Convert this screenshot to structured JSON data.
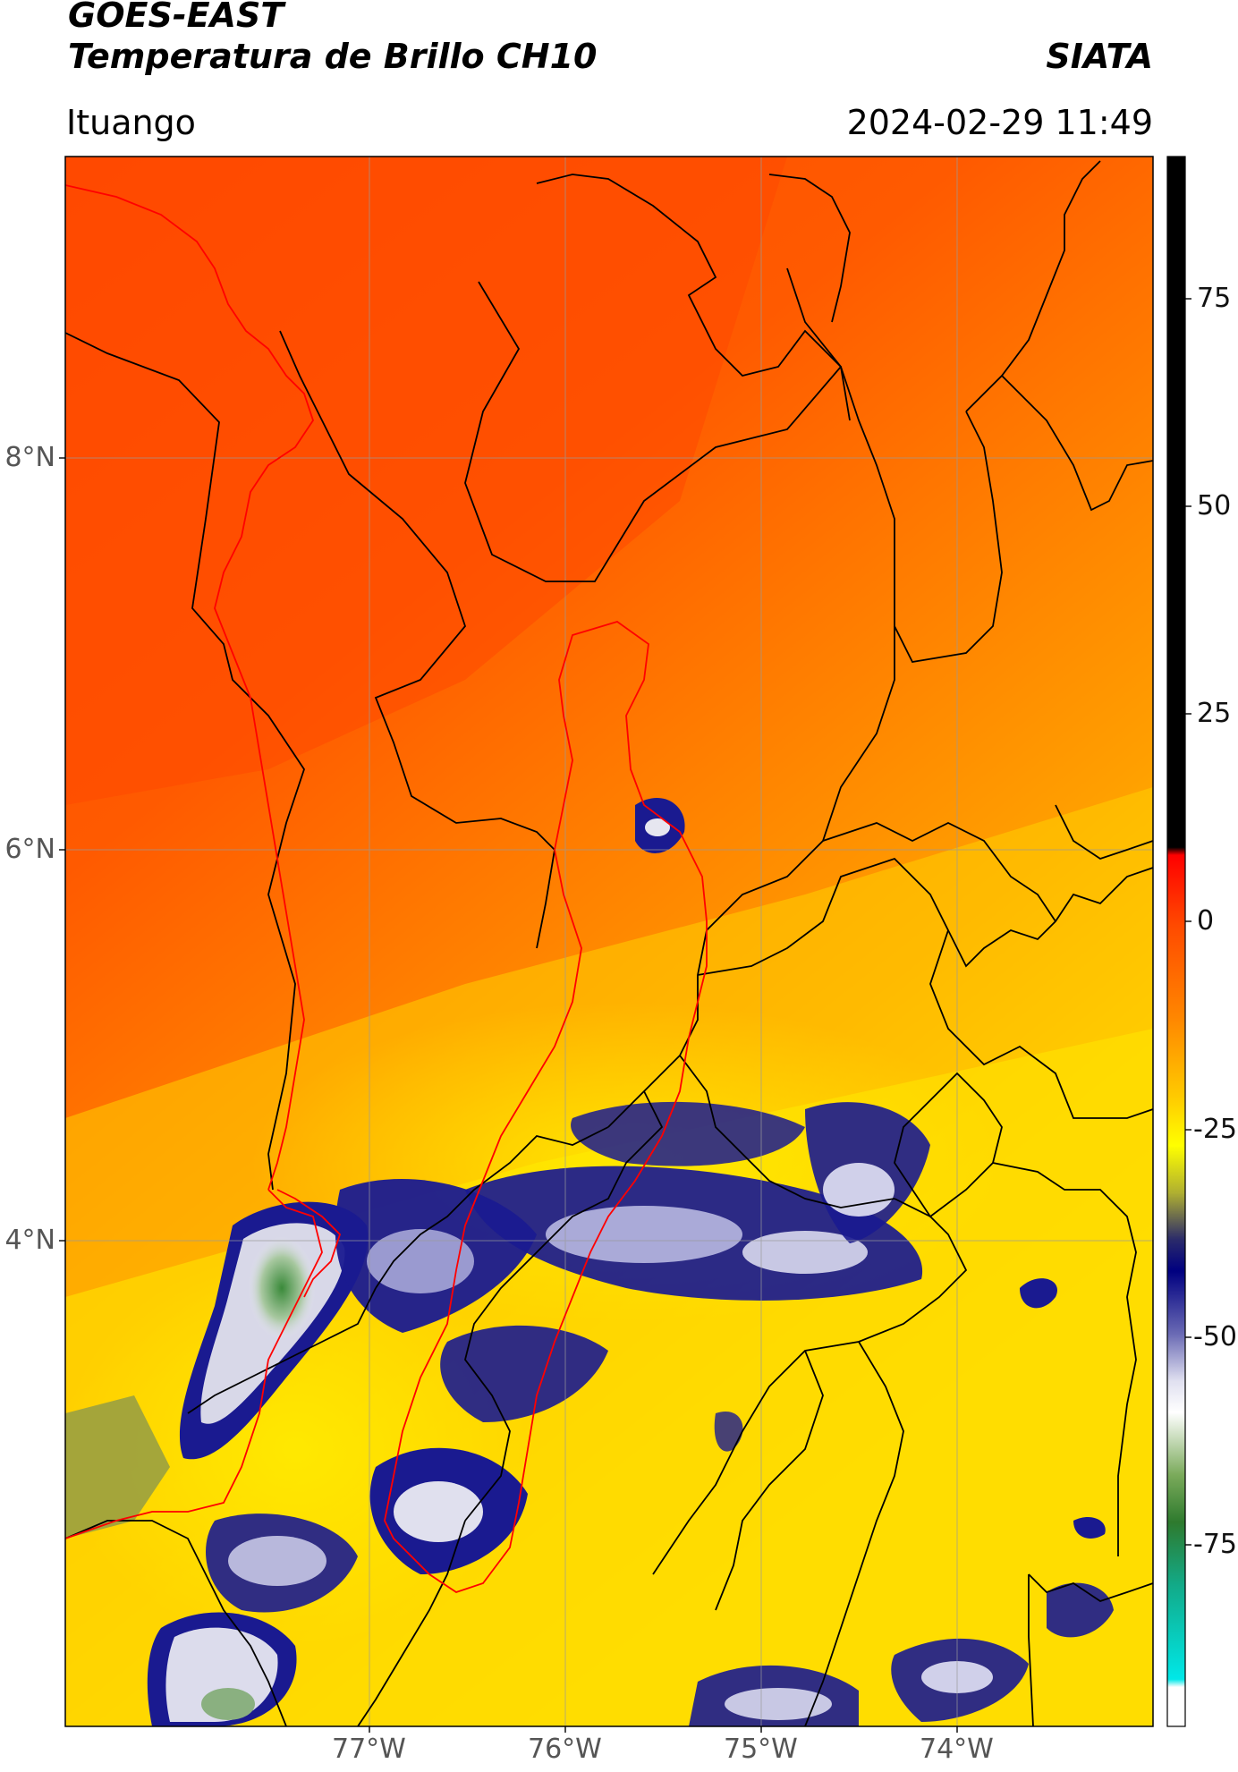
{
  "header": {
    "title_line1": "GOES-EAST",
    "title_line2": "Temperatura de Brillo CH10",
    "org": "SIATA",
    "location": "Ituango",
    "datetime": "2024-02-29 11:49"
  },
  "map": {
    "lat_ticks": [
      {
        "value": 8,
        "label": "8°N"
      },
      {
        "value": 6,
        "label": "6°N"
      },
      {
        "value": 4,
        "label": "4°N"
      }
    ],
    "lon_ticks": [
      {
        "value": -77,
        "label": "77°W"
      },
      {
        "value": -76,
        "label": "76°W"
      },
      {
        "value": -75,
        "label": "75°W"
      },
      {
        "value": -74,
        "label": "74°W"
      }
    ],
    "boundary_color": "#000000",
    "basin_color": "#ff0000",
    "grid_color": "#9a9a9a"
  },
  "colorbar": {
    "ticks": [
      {
        "value": 75,
        "label": "75"
      },
      {
        "value": 50,
        "label": "50"
      },
      {
        "value": 25,
        "label": "25"
      },
      {
        "value": 0,
        "label": "0"
      },
      {
        "value": -25,
        "label": "-25"
      },
      {
        "value": -50,
        "label": "-50"
      },
      {
        "value": -75,
        "label": "-75"
      }
    ],
    "range": [
      -90,
      90
    ],
    "colors": {
      "warm_high": "#000000",
      "warm_red": "#ff1a00",
      "orange": "#ff7a00",
      "yellow": "#ffee00",
      "navy": "#141a8c",
      "white": "#f2f2f2",
      "green": "#2e8b2e",
      "cyan": "#00e0e0"
    }
  }
}
